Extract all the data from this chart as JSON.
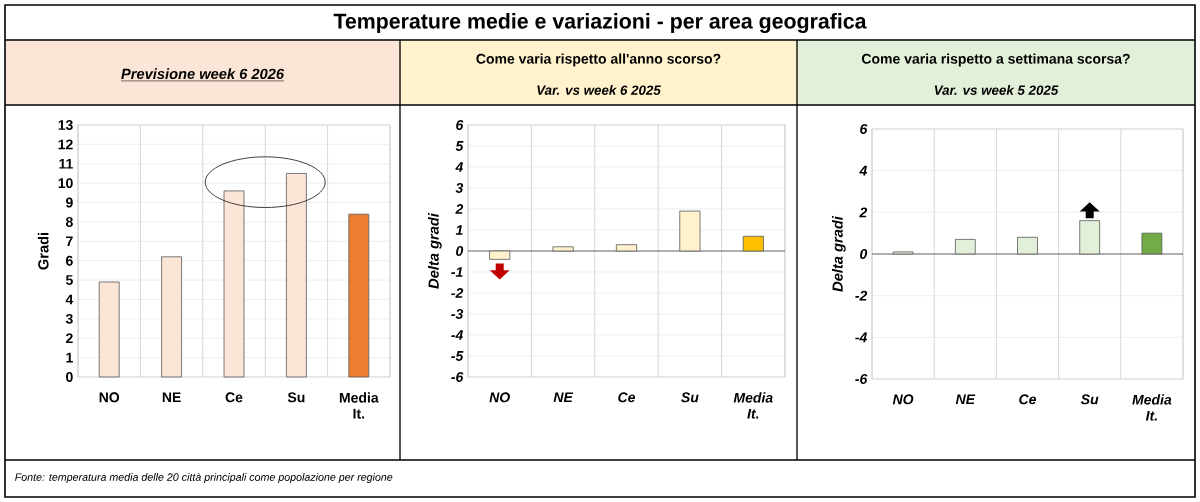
{
  "chart_data": [
    {
      "type": "bar",
      "title": "Previsione week 6 2026",
      "ylabel": "Gradi",
      "categories": [
        "NO",
        "NE",
        "Ce",
        "Su",
        "Media It."
      ],
      "values": [
        4.9,
        6.2,
        9.6,
        10.5,
        8.4
      ],
      "colors": [
        "#fbe5d6",
        "#fbe5d6",
        "#fbe5d6",
        "#fbe5d6",
        "#ed7d31"
      ],
      "ylim": [
        0,
        13
      ],
      "yticks": [
        0,
        1,
        2,
        3,
        4,
        5,
        6,
        7,
        8,
        9,
        10,
        11,
        12,
        13
      ],
      "grid": true,
      "annotations": [
        "Temperature medie e variazioni - per area geografica",
        "Fonte: temperatura media delle 20 città principali come popolazione per regione"
      ]
    },
    {
      "type": "bar",
      "title": "Come varia rispetto all'anno scorso?",
      "subtitle": "Var. vs week 6 2025",
      "ylabel": "Delta gradi",
      "categories": [
        "NO",
        "NE",
        "Ce",
        "Su",
        "Media It."
      ],
      "values": [
        -0.4,
        0.2,
        0.3,
        1.9,
        0.7
      ],
      "colors": [
        "#fff2cc",
        "#fff2cc",
        "#fff2cc",
        "#fff2cc",
        "#ffc000"
      ],
      "ylim": [
        -6,
        6
      ],
      "yticks": [
        -6,
        -5,
        -4,
        -3,
        -2,
        -1,
        0,
        1,
        2,
        3,
        4,
        5,
        6
      ],
      "grid": true
    },
    {
      "type": "bar",
      "title": "Come varia rispetto a settimana scorsa?",
      "subtitle": "Var. vs week 5 2025",
      "ylabel": "Delta gradi",
      "categories": [
        "NO",
        "NE",
        "Ce",
        "Su",
        "Media It."
      ],
      "values": [
        0.1,
        0.7,
        0.8,
        1.6,
        1.0
      ],
      "colors": [
        "#e2f0d9",
        "#e2f0d9",
        "#e2f0d9",
        "#e2f0d9",
        "#70ad47"
      ],
      "ylim": [
        -6,
        6
      ],
      "yticks": [
        -6,
        -4,
        -2,
        0,
        2,
        4,
        6
      ],
      "grid": true
    }
  ]
}
